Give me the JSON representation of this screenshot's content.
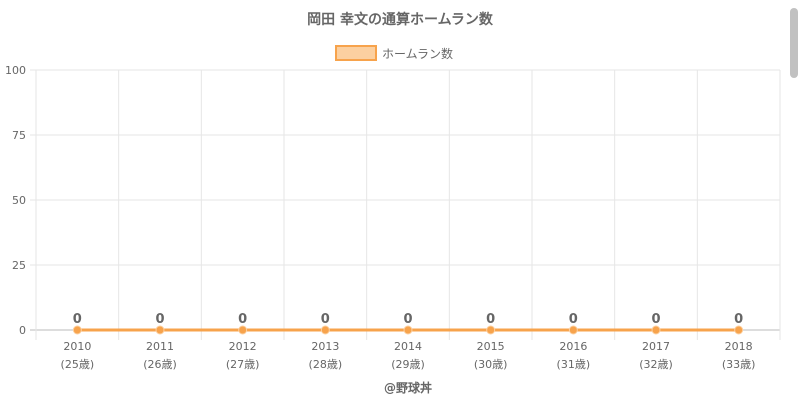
{
  "chart_data": {
    "type": "line",
    "title": "岡田 幸文の通算ホームラン数",
    "categories": [
      "2010",
      "2011",
      "2012",
      "2013",
      "2014",
      "2015",
      "2016",
      "2017",
      "2018"
    ],
    "sublabels": [
      "(25歳)",
      "(26歳)",
      "(27歳)",
      "(28歳)",
      "(29歳)",
      "(30歳)",
      "(31歳)",
      "(32歳)",
      "(33歳)"
    ],
    "series": [
      {
        "name": "ホームラン数",
        "values": [
          0,
          0,
          0,
          0,
          0,
          0,
          0,
          0,
          0
        ],
        "color": "#f7a34c"
      }
    ],
    "ylim": [
      0,
      100
    ],
    "yticks": [
      0,
      25,
      50,
      75,
      100
    ],
    "grid": true,
    "legend": "top-center",
    "data_labels": true
  },
  "credit": "@野球丼",
  "colors": {
    "line": "#f7a34c",
    "legend_fill": "#fcd0a0",
    "grid": "#e6e6e6",
    "axis": "#bbbbbb"
  }
}
